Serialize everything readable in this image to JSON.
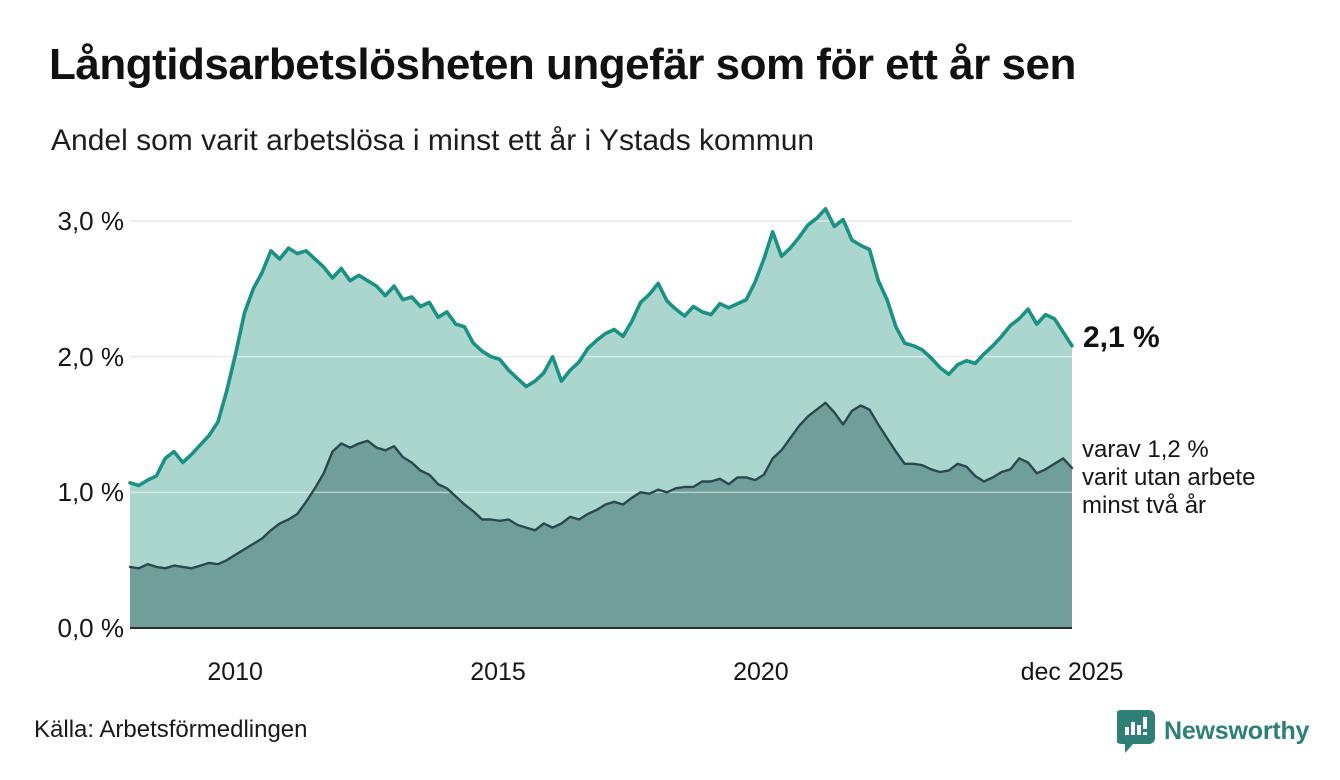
{
  "header": {
    "title": "Långtidsarbetslösheten ungefär som för ett år sen",
    "subtitle": "Andel som varit arbetslösa i minst ett år i Ystads kommun"
  },
  "annotations": {
    "latest_total": "2,1 %",
    "secondary_lines": [
      "varav 1,2 %",
      "varit utan arbete",
      "minst två år"
    ]
  },
  "source": {
    "label": "Källa: Arbetsförmedlingen"
  },
  "branding": {
    "name": "Newsworthy",
    "color": "#2e8077"
  },
  "chart_data": {
    "type": "area",
    "title": "Långtidsarbetslösheten ungefär som för ett år sen",
    "subtitle": "Andel som varit arbetslösa i minst ett år i Ystads kommun",
    "unit": "%",
    "grid": true,
    "x_range": {
      "start": 2008.0,
      "end": 2025.917
    },
    "x_ticks": [
      {
        "value": 2010,
        "label": "2010"
      },
      {
        "value": 2015,
        "label": "2015"
      },
      {
        "value": 2020,
        "label": "2020"
      },
      {
        "value": 2025.917,
        "label": "dec 2025"
      }
    ],
    "y_ticks": [
      {
        "value": 0,
        "label": "0,0 %"
      },
      {
        "value": 1,
        "label": "1,0 %"
      },
      {
        "value": 2,
        "label": "2,0 %"
      },
      {
        "value": 3,
        "label": "3,0 %"
      }
    ],
    "ylim": [
      0,
      3.1
    ],
    "latest_values": {
      "total": 2.1,
      "two_years": 1.2
    },
    "series": [
      {
        "name": "Arbetslösa minst ett år",
        "stroke": "#1a9184",
        "fill": "#abd6ce",
        "stroke_width": 3.6,
        "values": [
          1.07,
          1.05,
          1.09,
          1.12,
          1.25,
          1.3,
          1.22,
          1.28,
          1.35,
          1.42,
          1.52,
          1.75,
          2.02,
          2.32,
          2.5,
          2.62,
          2.78,
          2.72,
          2.8,
          2.76,
          2.78,
          2.72,
          2.66,
          2.58,
          2.65,
          2.56,
          2.6,
          2.56,
          2.52,
          2.45,
          2.52,
          2.42,
          2.44,
          2.37,
          2.4,
          2.29,
          2.33,
          2.24,
          2.22,
          2.1,
          2.04,
          2.0,
          1.98,
          1.9,
          1.84,
          1.78,
          1.82,
          1.88,
          2.0,
          1.82,
          1.9,
          1.96,
          2.06,
          2.12,
          2.17,
          2.2,
          2.15,
          2.26,
          2.4,
          2.46,
          2.54,
          2.41,
          2.35,
          2.3,
          2.37,
          2.33,
          2.31,
          2.39,
          2.36,
          2.39,
          2.42,
          2.55,
          2.72,
          2.92,
          2.74,
          2.8,
          2.88,
          2.97,
          3.02,
          3.09,
          2.96,
          3.01,
          2.86,
          2.82,
          2.79,
          2.56,
          2.42,
          2.22,
          2.1,
          2.08,
          2.05,
          1.99,
          1.92,
          1.87,
          1.94,
          1.97,
          1.95,
          2.02,
          2.08,
          2.15,
          2.23,
          2.28,
          2.35,
          2.24,
          2.31,
          2.28,
          2.18,
          2.08
        ]
      },
      {
        "name": "varav utan arbete minst två år",
        "stroke": "#2b484e",
        "fill": "#709e99",
        "stroke_width": 2.4,
        "values": [
          0.45,
          0.44,
          0.47,
          0.45,
          0.44,
          0.46,
          0.45,
          0.44,
          0.46,
          0.48,
          0.47,
          0.5,
          0.54,
          0.58,
          0.62,
          0.66,
          0.72,
          0.77,
          0.8,
          0.84,
          0.93,
          1.03,
          1.14,
          1.3,
          1.36,
          1.33,
          1.36,
          1.38,
          1.33,
          1.31,
          1.34,
          1.26,
          1.22,
          1.16,
          1.13,
          1.06,
          1.03,
          0.97,
          0.91,
          0.86,
          0.8,
          0.8,
          0.79,
          0.8,
          0.76,
          0.74,
          0.72,
          0.77,
          0.74,
          0.77,
          0.82,
          0.8,
          0.84,
          0.87,
          0.91,
          0.93,
          0.91,
          0.96,
          1.0,
          0.99,
          1.02,
          1.0,
          1.03,
          1.04,
          1.04,
          1.08,
          1.08,
          1.1,
          1.06,
          1.11,
          1.11,
          1.09,
          1.13,
          1.25,
          1.31,
          1.4,
          1.49,
          1.56,
          1.61,
          1.66,
          1.59,
          1.5,
          1.6,
          1.64,
          1.61,
          1.5,
          1.4,
          1.3,
          1.21,
          1.21,
          1.2,
          1.17,
          1.15,
          1.16,
          1.21,
          1.19,
          1.12,
          1.08,
          1.11,
          1.15,
          1.17,
          1.25,
          1.22,
          1.14,
          1.17,
          1.21,
          1.25,
          1.18
        ]
      }
    ]
  }
}
